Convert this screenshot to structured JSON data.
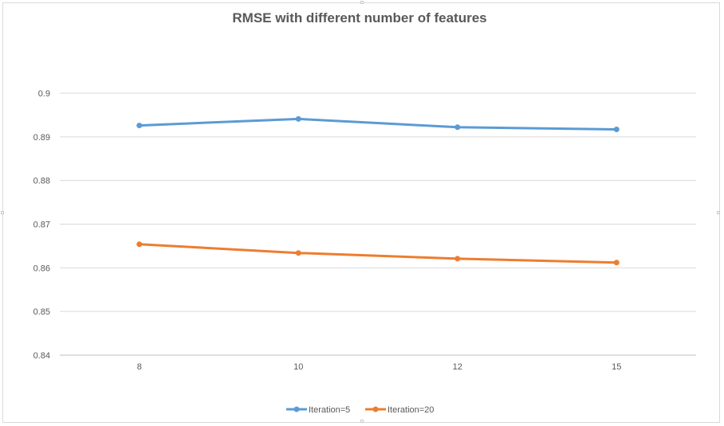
{
  "chart_data": {
    "type": "line",
    "title": "RMSE with different number of features",
    "xlabel": "",
    "ylabel": "",
    "categories": [
      "8",
      "10",
      "12",
      "15"
    ],
    "ylim": [
      0.84,
      0.9
    ],
    "yticks": [
      "0.84",
      "0.85",
      "0.86",
      "0.87",
      "0.88",
      "0.89",
      "0.9"
    ],
    "grid": true,
    "legend_position": "bottom",
    "series": [
      {
        "name": "Iteration=5",
        "color": "#5b9bd5",
        "values": [
          0.8926,
          0.8941,
          0.8922,
          0.8917
        ]
      },
      {
        "name": "Iteration=20",
        "color": "#ed7d31",
        "values": [
          0.8654,
          0.8634,
          0.8621,
          0.8612
        ]
      }
    ]
  }
}
